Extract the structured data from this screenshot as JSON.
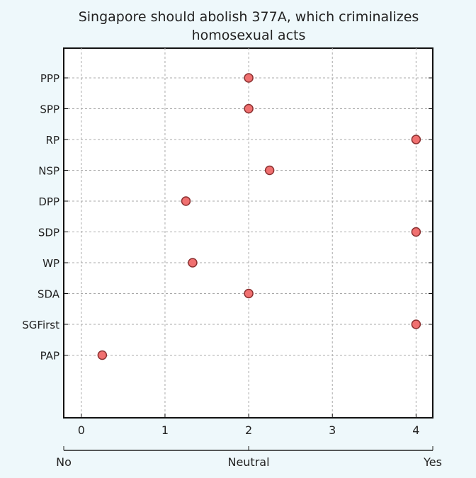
{
  "chart_data": {
    "type": "scatter",
    "title_lines": [
      "Singapore should abolish 377A, which criminalizes",
      "homosexual acts"
    ],
    "categories": [
      "PPP",
      "SPP",
      "RP",
      "NSP",
      "DPP",
      "SDP",
      "WP",
      "SDA",
      "SGFirst",
      "PAP"
    ],
    "values": [
      2,
      2,
      4,
      2.25,
      1.25,
      4,
      1.33,
      2,
      4,
      0.25
    ],
    "xticks": [
      "0",
      "1",
      "2",
      "3",
      "4"
    ],
    "xlim": [
      -0.21,
      4.2
    ],
    "grid": true,
    "scale_labels": [
      "No",
      "Neutral",
      "Yes"
    ],
    "marker_color": "#f07070",
    "marker_edge": "#8a3030"
  }
}
